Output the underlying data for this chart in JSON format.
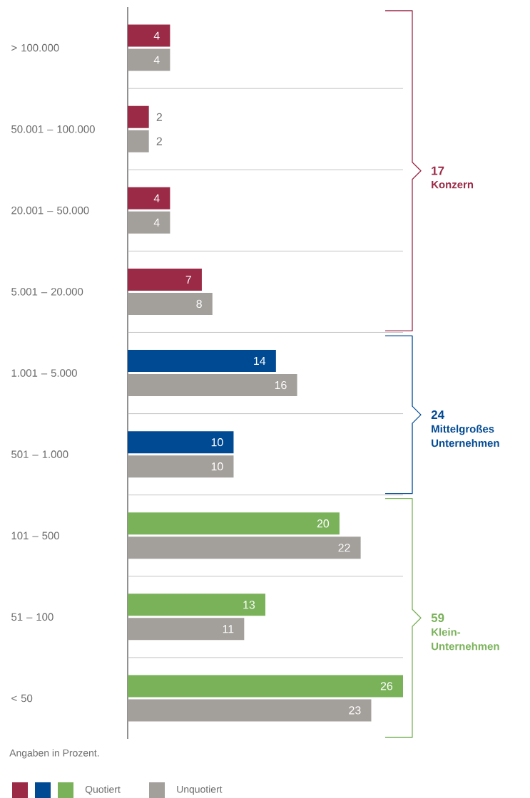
{
  "chart_data": {
    "type": "bar",
    "orientation": "horizontal",
    "categories": [
      "> 100.000",
      "50.001 – 100.000",
      "20.001 – 50.000",
      "5.001 – 20.000",
      "1.001 – 5.000",
      "501 – 1.000",
      "101 – 500",
      "51 – 100",
      "< 50"
    ],
    "series": [
      {
        "name": "Quotiert",
        "colors": [
          "#9b2a47",
          "#9b2a47",
          "#9b2a47",
          "#9b2a47",
          "#004a93",
          "#004a93",
          "#7ab25a",
          "#7ab25a",
          "#7ab25a"
        ],
        "values": [
          4,
          2,
          4,
          7,
          14,
          10,
          20,
          13,
          26
        ]
      },
      {
        "name": "Unquotiert",
        "color": "#a39f9b",
        "values": [
          4,
          2,
          4,
          8,
          16,
          10,
          22,
          11,
          23
        ]
      }
    ],
    "data_labels": true,
    "grid": "y",
    "legend": "bottom left",
    "annotations": [
      "17",
      "Konzern",
      "24",
      "Mittelgroßes Unternehmen",
      "59",
      "Klein-Unternehmen",
      "Angaben in Prozent."
    ]
  }
}
